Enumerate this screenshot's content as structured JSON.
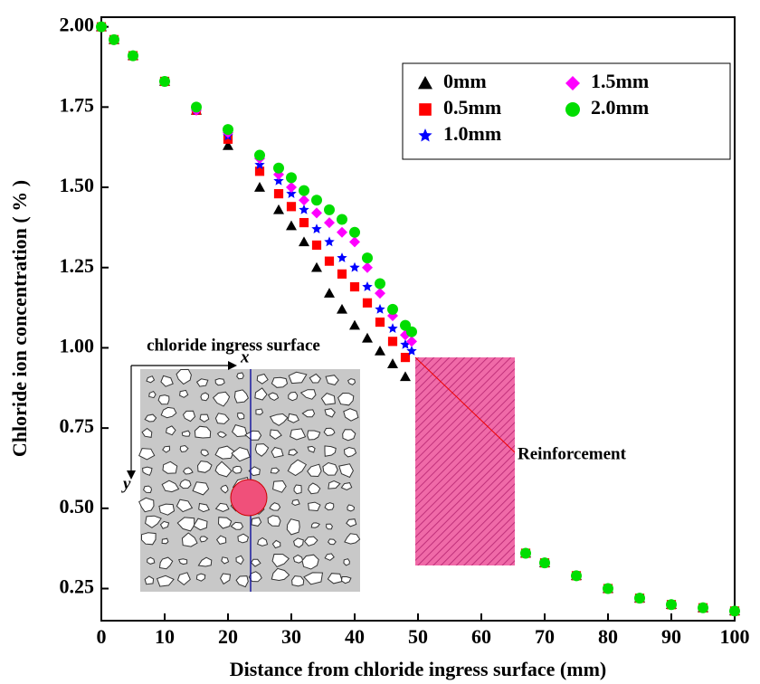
{
  "chart_data": {
    "type": "scatter",
    "xlabel": "Distance from chloride ingress surface (mm)",
    "ylabel": "Chloride ion concentration ( % )",
    "xlim": [
      0,
      100
    ],
    "ylim": [
      0.15,
      2.03
    ],
    "xticks": [
      0,
      10,
      20,
      30,
      40,
      50,
      60,
      70,
      80,
      90,
      100
    ],
    "yticks": [
      0.25,
      {
        "value": 0.5,
        "label": "0.50"
      },
      0.75,
      {
        "value": 1.0,
        "label": "1.00"
      },
      1.25,
      {
        "value": 1.5,
        "label": "1.50"
      },
      1.75,
      {
        "value": 2.0,
        "label": "2.00"
      }
    ],
    "grid": false,
    "legend": "upper right",
    "annotations": {
      "surface": "chloride ingress surface",
      "x_axis": "x",
      "y_axis": "y",
      "reinforcement": "Reinforcement"
    },
    "series": [
      {
        "name": "0mm",
        "color": "#000000",
        "marker": "triangle",
        "x": [
          0,
          2,
          5,
          10,
          15,
          20,
          25,
          28,
          30,
          32,
          34,
          36,
          38,
          40,
          42,
          44,
          46,
          48,
          67,
          70,
          75,
          80,
          85,
          90,
          95,
          100
        ],
        "values": [
          2.0,
          1.96,
          1.91,
          1.83,
          1.74,
          1.63,
          1.5,
          1.43,
          1.38,
          1.33,
          1.25,
          1.17,
          1.12,
          1.07,
          1.03,
          0.99,
          0.95,
          0.91,
          0.36,
          0.33,
          0.29,
          0.25,
          0.22,
          0.2,
          0.19,
          0.18
        ]
      },
      {
        "name": "0.5mm",
        "color": "#ff0000",
        "marker": "square",
        "x": [
          0,
          2,
          5,
          10,
          15,
          20,
          25,
          28,
          30,
          32,
          34,
          36,
          38,
          40,
          42,
          44,
          46,
          48,
          67,
          70,
          75,
          80,
          85,
          90,
          95,
          100
        ],
        "values": [
          2.0,
          1.96,
          1.91,
          1.83,
          1.74,
          1.65,
          1.55,
          1.48,
          1.44,
          1.39,
          1.32,
          1.27,
          1.23,
          1.19,
          1.14,
          1.08,
          1.02,
          0.97,
          0.36,
          0.33,
          0.29,
          0.25,
          0.22,
          0.2,
          0.19,
          0.18
        ]
      },
      {
        "name": "1.0mm",
        "color": "#0000ff",
        "marker": "star",
        "x": [
          0,
          2,
          5,
          10,
          15,
          20,
          25,
          28,
          30,
          32,
          34,
          36,
          38,
          40,
          42,
          44,
          46,
          48,
          49,
          67,
          70,
          75,
          80,
          85,
          90,
          95,
          100
        ],
        "values": [
          2.0,
          1.96,
          1.91,
          1.83,
          1.74,
          1.66,
          1.57,
          1.52,
          1.48,
          1.43,
          1.37,
          1.33,
          1.28,
          1.25,
          1.19,
          1.12,
          1.06,
          1.01,
          0.99,
          0.36,
          0.33,
          0.29,
          0.25,
          0.22,
          0.2,
          0.19,
          0.18
        ]
      },
      {
        "name": "1.5mm",
        "color": "#ff00ff",
        "marker": "diamond",
        "x": [
          0,
          2,
          5,
          10,
          15,
          20,
          25,
          28,
          30,
          32,
          34,
          36,
          38,
          40,
          42,
          44,
          46,
          48,
          49,
          67,
          70,
          75,
          80,
          85,
          90,
          95,
          100
        ],
        "values": [
          2.0,
          1.96,
          1.91,
          1.83,
          1.74,
          1.67,
          1.59,
          1.54,
          1.5,
          1.46,
          1.42,
          1.39,
          1.36,
          1.33,
          1.25,
          1.17,
          1.1,
          1.04,
          1.02,
          0.36,
          0.33,
          0.29,
          0.25,
          0.22,
          0.2,
          0.19,
          0.18
        ]
      },
      {
        "name": "2.0mm",
        "color": "#00dd00",
        "marker": "circle",
        "x": [
          0,
          2,
          5,
          10,
          15,
          20,
          25,
          28,
          30,
          32,
          34,
          36,
          38,
          40,
          42,
          44,
          46,
          48,
          49,
          67,
          70,
          75,
          80,
          85,
          90,
          95,
          100
        ],
        "values": [
          2.0,
          1.96,
          1.91,
          1.83,
          1.75,
          1.68,
          1.6,
          1.56,
          1.53,
          1.49,
          1.46,
          1.43,
          1.4,
          1.36,
          1.28,
          1.2,
          1.12,
          1.07,
          1.05,
          0.36,
          0.33,
          0.29,
          0.25,
          0.22,
          0.2,
          0.19,
          0.18
        ]
      }
    ]
  }
}
